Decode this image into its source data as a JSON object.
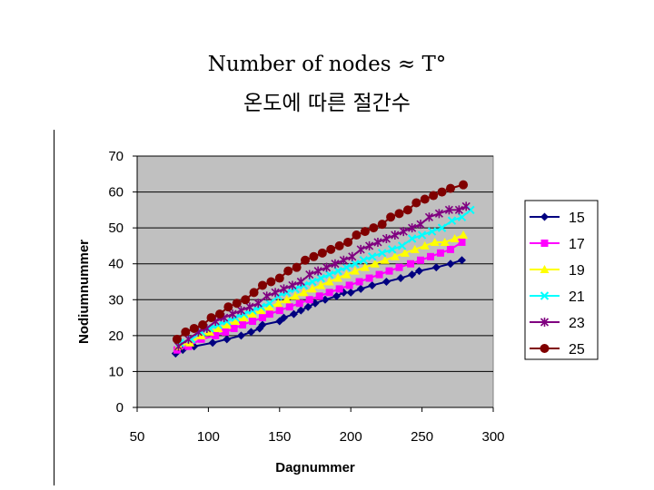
{
  "slide": {
    "title_line1": "Number of nodes ≈ T°",
    "title_line2": "온도에 따른 절간수"
  },
  "chart_data": {
    "type": "line",
    "xlabel": "Dagnummer",
    "ylabel": "Nodiumnummer",
    "xlim": [
      50,
      300
    ],
    "ylim": [
      0,
      70
    ],
    "xticks": [
      50,
      100,
      150,
      200,
      250,
      300
    ],
    "yticks": [
      0,
      10,
      20,
      30,
      40,
      50,
      60,
      70
    ],
    "grid": "horizontal",
    "legend_position": "right",
    "plot_background": "#c0c0c0",
    "series": [
      {
        "name": "15",
        "color": "#000080",
        "marker": "diamond",
        "x": [
          77,
          82,
          90,
          103,
          113,
          123,
          130,
          136,
          138,
          150,
          153,
          160,
          165,
          170,
          175,
          182,
          190,
          195,
          200,
          207,
          215,
          225,
          235,
          243,
          248,
          260,
          270,
          278
        ],
        "y": [
          15,
          16,
          17,
          18,
          19,
          20,
          21,
          22,
          23,
          24,
          25,
          26,
          27,
          28,
          29,
          30,
          31,
          32,
          32,
          33,
          34,
          35,
          36,
          37,
          38,
          39,
          40,
          41
        ]
      },
      {
        "name": "17",
        "color": "#ff00ff",
        "marker": "square",
        "x": [
          78,
          86,
          95,
          105,
          112,
          118,
          124,
          131,
          138,
          143,
          150,
          157,
          164,
          171,
          178,
          185,
          192,
          199,
          206,
          213,
          220,
          227,
          234,
          242,
          249,
          256,
          263,
          270,
          278
        ],
        "y": [
          16,
          17,
          19,
          20,
          21,
          22,
          23,
          24,
          25,
          26,
          27,
          28,
          29,
          30,
          31,
          32,
          33,
          34,
          35,
          36,
          37,
          38,
          39,
          40,
          41,
          42,
          43,
          44,
          46
        ]
      },
      {
        "name": "19",
        "color": "#ffff00",
        "marker": "triangle",
        "x": [
          79,
          87,
          95,
          101,
          107,
          113,
          119,
          125,
          131,
          137,
          143,
          149,
          155,
          161,
          167,
          173,
          179,
          185,
          191,
          197,
          203,
          210,
          217,
          224,
          231,
          238,
          245,
          252,
          259,
          266,
          273,
          279
        ],
        "y": [
          17,
          18,
          20,
          21,
          22,
          23,
          24,
          25,
          26,
          27,
          28,
          29,
          30,
          31,
          32,
          33,
          34,
          35,
          36,
          37,
          38,
          39,
          40,
          41,
          42,
          43,
          44,
          45,
          46,
          46,
          47,
          48
        ]
      },
      {
        "name": "21",
        "color": "#00ffff",
        "marker": "x",
        "x": [
          80,
          88,
          95,
          101,
          107,
          113,
          119,
          125,
          131,
          137,
          143,
          149,
          155,
          161,
          167,
          173,
          179,
          185,
          191,
          197,
          203,
          209,
          215,
          222,
          229,
          236,
          243,
          250,
          257,
          264,
          271,
          278,
          284
        ],
        "y": [
          18,
          19,
          21,
          22,
          23,
          24,
          25,
          26,
          27,
          28,
          29,
          31,
          32,
          33,
          34,
          35,
          36,
          37,
          38,
          39,
          40,
          41,
          42,
          43,
          44,
          45,
          47,
          48,
          49,
          50,
          52,
          53,
          55
        ]
      },
      {
        "name": "23",
        "color": "#800080",
        "marker": "star",
        "x": [
          79,
          86,
          93,
          99,
          105,
          111,
          117,
          123,
          129,
          135,
          141,
          147,
          153,
          159,
          165,
          171,
          177,
          183,
          189,
          195,
          201,
          207,
          213,
          219,
          225,
          231,
          237,
          243,
          249,
          255,
          262,
          269,
          276,
          281
        ],
        "y": [
          17,
          19,
          21,
          22,
          24,
          25,
          26,
          27,
          28,
          29,
          31,
          32,
          33,
          34,
          35,
          37,
          38,
          39,
          40,
          41,
          42,
          44,
          45,
          46,
          47,
          48,
          49,
          50,
          51,
          53,
          54,
          55,
          55,
          56
        ]
      },
      {
        "name": "25",
        "color": "#800000",
        "marker": "circle",
        "x": [
          78,
          84,
          90,
          96,
          102,
          108,
          114,
          120,
          126,
          132,
          138,
          144,
          150,
          156,
          162,
          168,
          174,
          180,
          186,
          192,
          198,
          204,
          210,
          216,
          222,
          228,
          234,
          240,
          246,
          252,
          258,
          264,
          270,
          279
        ],
        "y": [
          19,
          21,
          22,
          23,
          25,
          26,
          28,
          29,
          30,
          32,
          34,
          35,
          36,
          38,
          39,
          41,
          42,
          43,
          44,
          45,
          46,
          48,
          49,
          50,
          51,
          53,
          54,
          55,
          57,
          58,
          59,
          60,
          61,
          62
        ]
      }
    ]
  }
}
